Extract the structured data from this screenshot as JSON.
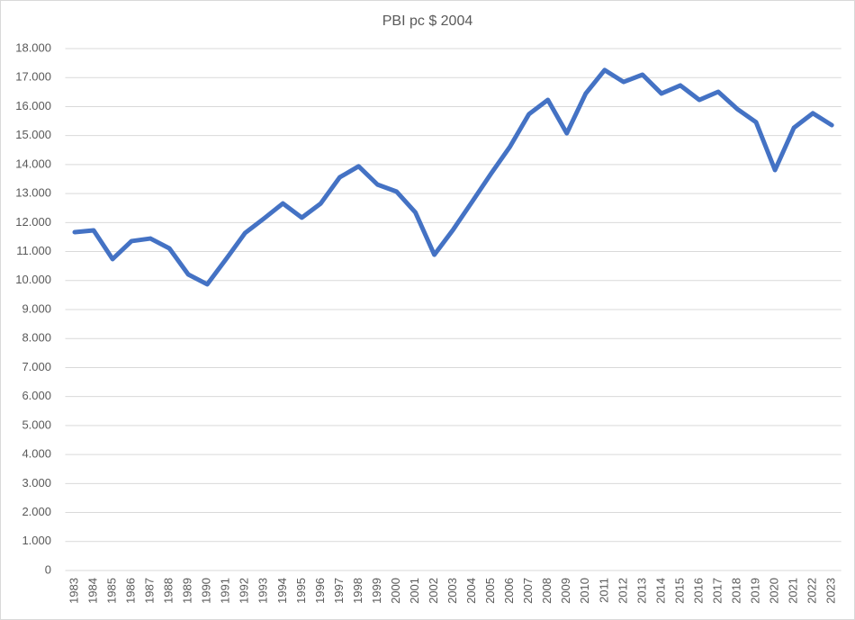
{
  "chart_data": {
    "type": "line",
    "title": "PBI pc $ 2004",
    "categories": [
      "1983",
      "1984",
      "1985",
      "1986",
      "1987",
      "1988",
      "1989",
      "1990",
      "1991",
      "1992",
      "1993",
      "1994",
      "1995",
      "1996",
      "1997",
      "1998",
      "1999",
      "2000",
      "2001",
      "2002",
      "2003",
      "2004",
      "2005",
      "2006",
      "2007",
      "2008",
      "2009",
      "2010",
      "2011",
      "2012",
      "2013",
      "2014",
      "2015",
      "2016",
      "2017",
      "2018",
      "2019",
      "2020",
      "2021",
      "2022",
      "2023"
    ],
    "series": [
      {
        "color": "#4472c4",
        "values": [
          11670,
          11730,
          10740,
          11360,
          11450,
          11110,
          10210,
          9870,
          10740,
          11640,
          12140,
          12660,
          12170,
          12660,
          13560,
          13940,
          13310,
          13070,
          12350,
          10890,
          11760,
          12720,
          13690,
          14620,
          15740,
          16230,
          15080,
          16450,
          17260,
          16850,
          17100,
          16450,
          16730,
          16230,
          16510,
          15920,
          15460,
          13810,
          15270,
          15770,
          15360
        ]
      }
    ],
    "ylim": [
      0,
      18000
    ],
    "yticks": [
      0,
      {
        "value": 1000,
        "label": "1.000"
      },
      {
        "value": 2000,
        "label": "2.000"
      },
      {
        "value": 3000,
        "label": "3.000"
      },
      {
        "value": 4000,
        "label": "4.000"
      },
      {
        "value": 5000,
        "label": "5.000"
      },
      {
        "value": 6000,
        "label": "6.000"
      },
      {
        "value": 7000,
        "label": "7.000"
      },
      {
        "value": 8000,
        "label": "8.000"
      },
      {
        "value": 9000,
        "label": "9.000"
      },
      {
        "value": 10000,
        "label": "10.000"
      },
      {
        "value": 11000,
        "label": "11.000"
      },
      {
        "value": 12000,
        "label": "12.000"
      },
      {
        "value": 13000,
        "label": "13.000"
      },
      {
        "value": 14000,
        "label": "14.000"
      },
      {
        "value": 15000,
        "label": "15.000"
      },
      {
        "value": 16000,
        "label": "16.000"
      },
      {
        "value": 17000,
        "label": "17.000"
      },
      {
        "value": 18000,
        "label": "18.000"
      }
    ],
    "grid": true
  }
}
